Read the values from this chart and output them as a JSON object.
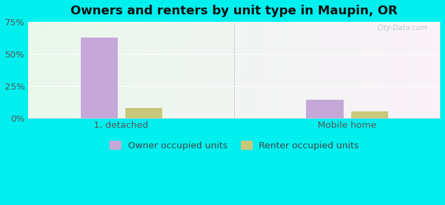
{
  "title": "Owners and renters by unit type in Maupin, OR",
  "categories": [
    "1, detached",
    "Mobile home"
  ],
  "owner_values": [
    62.5,
    14.0
  ],
  "renter_values": [
    8.0,
    5.0
  ],
  "owner_color": "#c5a8d8",
  "renter_color": "#c8c87a",
  "ylim": [
    0,
    75
  ],
  "yticks": [
    0,
    25,
    50,
    75
  ],
  "yticklabels": [
    "0%",
    "25%",
    "50%",
    "75%"
  ],
  "outer_bg_color": "#00efef",
  "legend_owner": "Owner occupied units",
  "legend_renter": "Renter occupied units",
  "bar_width": 0.28,
  "watermark": "City-Data.com",
  "title_fontsize": 13,
  "tick_fontsize": 9.5,
  "legend_fontsize": 9.5
}
